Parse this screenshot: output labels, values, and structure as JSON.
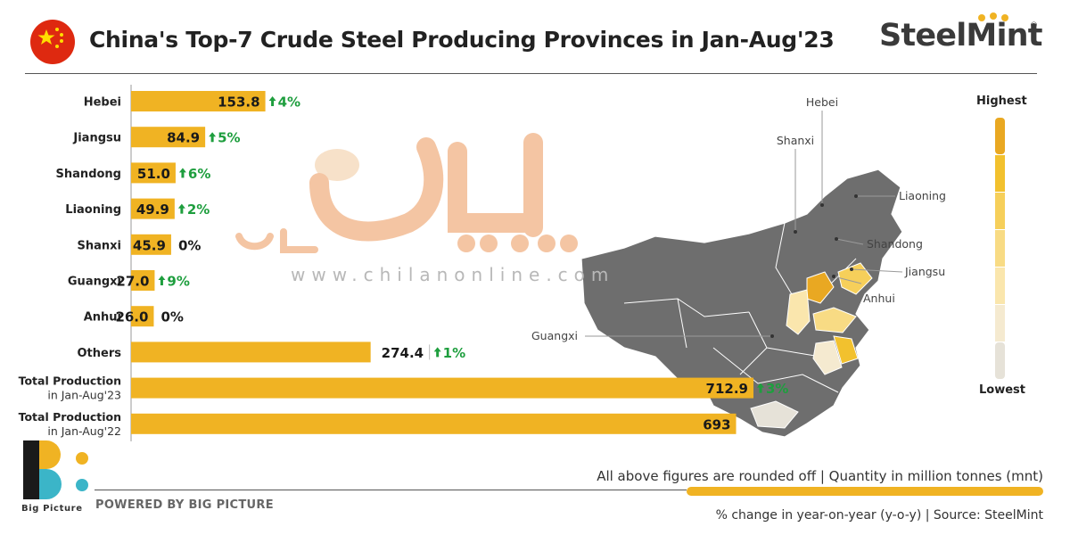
{
  "header": {
    "title": "China's Top-7 Crude Steel Producing Provinces in Jan-Aug'23",
    "brand": "SteelMint",
    "brand_mark": "®",
    "flag_icon": "china-flag-icon"
  },
  "colors": {
    "bar": "#f0b323",
    "growth": "#1e9e3e",
    "map_gray": "#6e6e6e",
    "scale": [
      "#e9a822",
      "#f2c12e",
      "#f6cf5a",
      "#f8db84",
      "#fae6ad",
      "#f5ead0",
      "#e6e2d8"
    ]
  },
  "chart_data": {
    "type": "bar",
    "orientation": "horizontal",
    "title": "China's Top-7 Crude Steel Producing Provinces in Jan-Aug'23",
    "categories": [
      [
        "Hebei"
      ],
      [
        "Jiangsu"
      ],
      [
        "Shandong"
      ],
      [
        "Liaoning"
      ],
      [
        "Shanxi"
      ],
      [
        "Guangxi"
      ],
      [
        "Anhui"
      ],
      [
        "Others"
      ],
      [
        "Total Production",
        "in Jan-Aug'23"
      ],
      [
        "Total Production",
        "in Jan-Aug'22"
      ]
    ],
    "values": [
      153.8,
      84.9,
      51.0,
      49.9,
      45.9,
      27.0,
      26.0,
      274.4,
      712.9,
      693
    ],
    "value_labels": [
      "153.8",
      "84.9",
      "51.0",
      "49.9",
      "45.9",
      "27.0",
      "26.0",
      "274.4",
      "712.9",
      "693"
    ],
    "yoy_change": [
      "4%",
      "5%",
      "6%",
      "2%",
      "0%",
      "9%",
      "0%",
      "1%",
      "3%",
      ""
    ],
    "yoy_up": [
      true,
      true,
      true,
      true,
      false,
      true,
      false,
      true,
      true,
      false
    ],
    "unit": "mnt"
  },
  "map": {
    "labels": [
      "Hebei",
      "Shanxi",
      "Liaoning",
      "Shandong",
      "Jiangsu",
      "Anhui",
      "Guangxi"
    ],
    "scale_high": "Highest",
    "scale_low": "Lowest"
  },
  "watermark": "www.chilanonline.com",
  "footer": {
    "note": "All above figures are rounded off | Quantity in million tonnes (mnt)",
    "source": "% change in year-on-year (y-o-y) | Source: SteelMint",
    "powered_by": "POWERED BY BIG PICTURE",
    "logo_text": "Big Picture"
  }
}
